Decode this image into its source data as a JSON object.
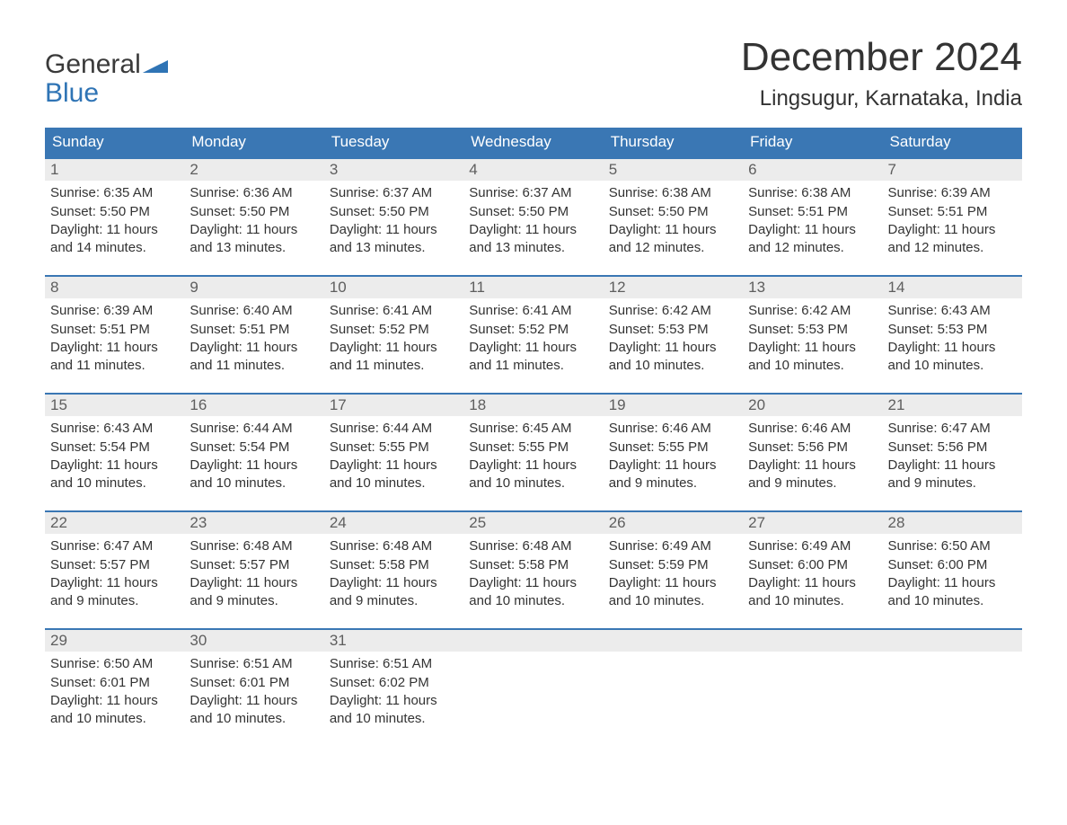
{
  "brand": {
    "word1": "General",
    "word2": "Blue",
    "text_color": "#3a3a3a",
    "accent_color": "#2f74b5"
  },
  "header": {
    "month_title": "December 2024",
    "location": "Lingsugur, Karnataka, India"
  },
  "colors": {
    "header_bg": "#3a77b4",
    "header_text": "#ffffff",
    "row_border": "#3a77b4",
    "daynum_bg": "#ececec",
    "daynum_text": "#5e5e5e",
    "body_text": "#333333",
    "page_bg": "#ffffff"
  },
  "typography": {
    "month_title_fontsize": 44,
    "location_fontsize": 24,
    "dow_fontsize": 17,
    "daynum_fontsize": 17,
    "body_fontsize": 15,
    "font_family": "Arial"
  },
  "days_of_week": [
    "Sunday",
    "Monday",
    "Tuesday",
    "Wednesday",
    "Thursday",
    "Friday",
    "Saturday"
  ],
  "weeks": [
    [
      {
        "n": "1",
        "sunrise": "Sunrise: 6:35 AM",
        "sunset": "Sunset: 5:50 PM",
        "dl1": "Daylight: 11 hours",
        "dl2": "and 14 minutes."
      },
      {
        "n": "2",
        "sunrise": "Sunrise: 6:36 AM",
        "sunset": "Sunset: 5:50 PM",
        "dl1": "Daylight: 11 hours",
        "dl2": "and 13 minutes."
      },
      {
        "n": "3",
        "sunrise": "Sunrise: 6:37 AM",
        "sunset": "Sunset: 5:50 PM",
        "dl1": "Daylight: 11 hours",
        "dl2": "and 13 minutes."
      },
      {
        "n": "4",
        "sunrise": "Sunrise: 6:37 AM",
        "sunset": "Sunset: 5:50 PM",
        "dl1": "Daylight: 11 hours",
        "dl2": "and 13 minutes."
      },
      {
        "n": "5",
        "sunrise": "Sunrise: 6:38 AM",
        "sunset": "Sunset: 5:50 PM",
        "dl1": "Daylight: 11 hours",
        "dl2": "and 12 minutes."
      },
      {
        "n": "6",
        "sunrise": "Sunrise: 6:38 AM",
        "sunset": "Sunset: 5:51 PM",
        "dl1": "Daylight: 11 hours",
        "dl2": "and 12 minutes."
      },
      {
        "n": "7",
        "sunrise": "Sunrise: 6:39 AM",
        "sunset": "Sunset: 5:51 PM",
        "dl1": "Daylight: 11 hours",
        "dl2": "and 12 minutes."
      }
    ],
    [
      {
        "n": "8",
        "sunrise": "Sunrise: 6:39 AM",
        "sunset": "Sunset: 5:51 PM",
        "dl1": "Daylight: 11 hours",
        "dl2": "and 11 minutes."
      },
      {
        "n": "9",
        "sunrise": "Sunrise: 6:40 AM",
        "sunset": "Sunset: 5:51 PM",
        "dl1": "Daylight: 11 hours",
        "dl2": "and 11 minutes."
      },
      {
        "n": "10",
        "sunrise": "Sunrise: 6:41 AM",
        "sunset": "Sunset: 5:52 PM",
        "dl1": "Daylight: 11 hours",
        "dl2": "and 11 minutes."
      },
      {
        "n": "11",
        "sunrise": "Sunrise: 6:41 AM",
        "sunset": "Sunset: 5:52 PM",
        "dl1": "Daylight: 11 hours",
        "dl2": "and 11 minutes."
      },
      {
        "n": "12",
        "sunrise": "Sunrise: 6:42 AM",
        "sunset": "Sunset: 5:53 PM",
        "dl1": "Daylight: 11 hours",
        "dl2": "and 10 minutes."
      },
      {
        "n": "13",
        "sunrise": "Sunrise: 6:42 AM",
        "sunset": "Sunset: 5:53 PM",
        "dl1": "Daylight: 11 hours",
        "dl2": "and 10 minutes."
      },
      {
        "n": "14",
        "sunrise": "Sunrise: 6:43 AM",
        "sunset": "Sunset: 5:53 PM",
        "dl1": "Daylight: 11 hours",
        "dl2": "and 10 minutes."
      }
    ],
    [
      {
        "n": "15",
        "sunrise": "Sunrise: 6:43 AM",
        "sunset": "Sunset: 5:54 PM",
        "dl1": "Daylight: 11 hours",
        "dl2": "and 10 minutes."
      },
      {
        "n": "16",
        "sunrise": "Sunrise: 6:44 AM",
        "sunset": "Sunset: 5:54 PM",
        "dl1": "Daylight: 11 hours",
        "dl2": "and 10 minutes."
      },
      {
        "n": "17",
        "sunrise": "Sunrise: 6:44 AM",
        "sunset": "Sunset: 5:55 PM",
        "dl1": "Daylight: 11 hours",
        "dl2": "and 10 minutes."
      },
      {
        "n": "18",
        "sunrise": "Sunrise: 6:45 AM",
        "sunset": "Sunset: 5:55 PM",
        "dl1": "Daylight: 11 hours",
        "dl2": "and 10 minutes."
      },
      {
        "n": "19",
        "sunrise": "Sunrise: 6:46 AM",
        "sunset": "Sunset: 5:55 PM",
        "dl1": "Daylight: 11 hours",
        "dl2": "and 9 minutes."
      },
      {
        "n": "20",
        "sunrise": "Sunrise: 6:46 AM",
        "sunset": "Sunset: 5:56 PM",
        "dl1": "Daylight: 11 hours",
        "dl2": "and 9 minutes."
      },
      {
        "n": "21",
        "sunrise": "Sunrise: 6:47 AM",
        "sunset": "Sunset: 5:56 PM",
        "dl1": "Daylight: 11 hours",
        "dl2": "and 9 minutes."
      }
    ],
    [
      {
        "n": "22",
        "sunrise": "Sunrise: 6:47 AM",
        "sunset": "Sunset: 5:57 PM",
        "dl1": "Daylight: 11 hours",
        "dl2": "and 9 minutes."
      },
      {
        "n": "23",
        "sunrise": "Sunrise: 6:48 AM",
        "sunset": "Sunset: 5:57 PM",
        "dl1": "Daylight: 11 hours",
        "dl2": "and 9 minutes."
      },
      {
        "n": "24",
        "sunrise": "Sunrise: 6:48 AM",
        "sunset": "Sunset: 5:58 PM",
        "dl1": "Daylight: 11 hours",
        "dl2": "and 9 minutes."
      },
      {
        "n": "25",
        "sunrise": "Sunrise: 6:48 AM",
        "sunset": "Sunset: 5:58 PM",
        "dl1": "Daylight: 11 hours",
        "dl2": "and 10 minutes."
      },
      {
        "n": "26",
        "sunrise": "Sunrise: 6:49 AM",
        "sunset": "Sunset: 5:59 PM",
        "dl1": "Daylight: 11 hours",
        "dl2": "and 10 minutes."
      },
      {
        "n": "27",
        "sunrise": "Sunrise: 6:49 AM",
        "sunset": "Sunset: 6:00 PM",
        "dl1": "Daylight: 11 hours",
        "dl2": "and 10 minutes."
      },
      {
        "n": "28",
        "sunrise": "Sunrise: 6:50 AM",
        "sunset": "Sunset: 6:00 PM",
        "dl1": "Daylight: 11 hours",
        "dl2": "and 10 minutes."
      }
    ],
    [
      {
        "n": "29",
        "sunrise": "Sunrise: 6:50 AM",
        "sunset": "Sunset: 6:01 PM",
        "dl1": "Daylight: 11 hours",
        "dl2": "and 10 minutes."
      },
      {
        "n": "30",
        "sunrise": "Sunrise: 6:51 AM",
        "sunset": "Sunset: 6:01 PM",
        "dl1": "Daylight: 11 hours",
        "dl2": "and 10 minutes."
      },
      {
        "n": "31",
        "sunrise": "Sunrise: 6:51 AM",
        "sunset": "Sunset: 6:02 PM",
        "dl1": "Daylight: 11 hours",
        "dl2": "and 10 minutes."
      },
      null,
      null,
      null,
      null
    ]
  ]
}
